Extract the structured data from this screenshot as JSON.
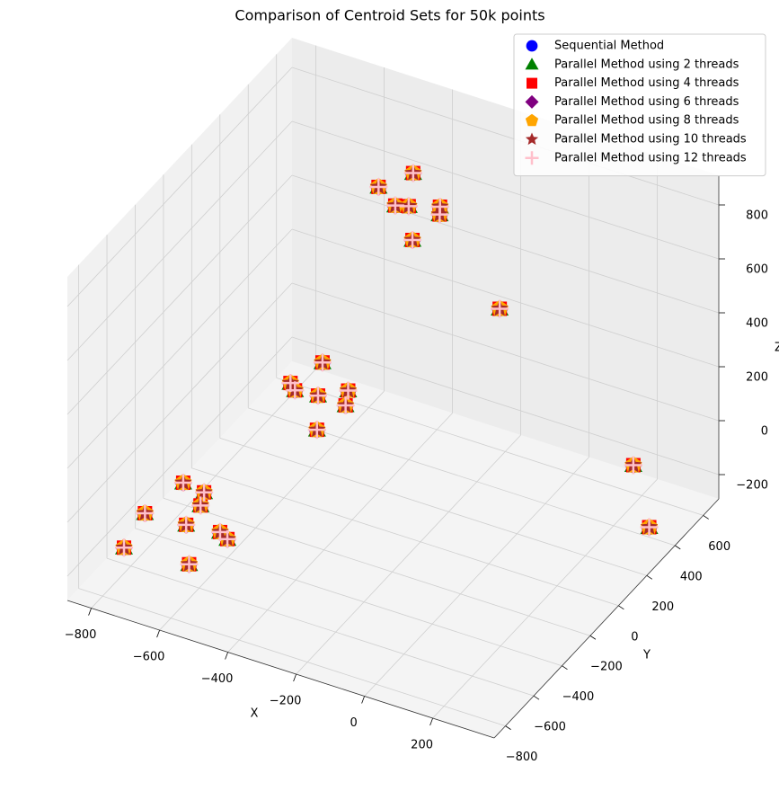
{
  "chart_data": {
    "type": "scatter3d",
    "title": "Comparison of Centroid Sets for 50k points",
    "xlabel": "X",
    "ylabel": "Y",
    "zlabel": "Z",
    "xlim": [
      -870,
      380
    ],
    "ylim": [
      -880,
      710
    ],
    "zlim": [
      -290,
      910
    ],
    "xticks": [
      {
        "value": -800,
        "label": "−800"
      },
      {
        "value": -600,
        "label": "−600"
      },
      {
        "value": -400,
        "label": "−400"
      },
      {
        "value": -200,
        "label": "−200"
      },
      0,
      200
    ],
    "yticks": [
      {
        "value": -800,
        "label": "−800"
      },
      {
        "value": -600,
        "label": "−600"
      },
      {
        "value": -400,
        "label": "−400"
      },
      {
        "value": -200,
        "label": "−200"
      },
      0,
      200,
      400,
      600
    ],
    "zticks": [
      {
        "value": -200,
        "label": "−200"
      },
      0,
      200,
      400,
      600,
      800
    ],
    "grid": true,
    "legend": "upper right",
    "series": [
      {
        "name": "Sequential Method",
        "color": "#0000ff",
        "marker": "circle",
        "x": [
          -700,
          -800,
          -600,
          -750,
          -650,
          -820,
          -580,
          -720,
          -660,
          -500,
          -560,
          -440,
          -520,
          -470,
          -420,
          -580,
          -400,
          -480,
          -330,
          -420,
          -360,
          -300,
          -460,
          -30,
          320,
          350
        ],
        "y": [
          -450,
          -500,
          -400,
          -350,
          -550,
          -600,
          -500,
          -300,
          -420,
          0,
          -50,
          50,
          80,
          -80,
          20,
          30,
          400,
          380,
          450,
          480,
          330,
          380,
          450,
          150,
          250,
          290
        ],
        "z": [
          -180,
          -150,
          -220,
          -100,
          -250,
          -230,
          -130,
          -200,
          -60,
          130,
          180,
          90,
          200,
          60,
          170,
          100,
          650,
          700,
          620,
          720,
          580,
          700,
          600,
          560,
          67,
          -173
        ]
      },
      {
        "name": "Parallel Method using 2 threads",
        "color": "#008000",
        "marker": "triangle",
        "x": [
          -700,
          -800,
          -600,
          -750,
          -650,
          -820,
          -580,
          -720,
          -660,
          -500,
          -560,
          -440,
          -520,
          -470,
          -420,
          -580,
          -400,
          -480,
          -330,
          -420,
          -360,
          -300,
          -460,
          -30,
          320,
          350
        ],
        "y": [
          -450,
          -500,
          -400,
          -350,
          -550,
          -600,
          -500,
          -300,
          -420,
          0,
          -50,
          50,
          80,
          -80,
          20,
          30,
          400,
          380,
          450,
          480,
          330,
          380,
          450,
          150,
          250,
          290
        ],
        "z": [
          -180,
          -150,
          -220,
          -100,
          -250,
          -230,
          -130,
          -200,
          -60,
          130,
          180,
          90,
          200,
          60,
          170,
          100,
          650,
          700,
          620,
          720,
          580,
          700,
          600,
          560,
          67,
          -173
        ]
      },
      {
        "name": "Parallel Method using 4 threads",
        "color": "#ff0000",
        "marker": "square",
        "x": [
          -700,
          -800,
          -600,
          -750,
          -650,
          -820,
          -580,
          -720,
          -660,
          -500,
          -560,
          -440,
          -520,
          -470,
          -420,
          -580,
          -400,
          -480,
          -330,
          -420,
          -360,
          -300,
          -460,
          -30,
          320,
          350
        ],
        "y": [
          -450,
          -500,
          -400,
          -350,
          -550,
          -600,
          -500,
          -300,
          -420,
          0,
          -50,
          50,
          80,
          -80,
          20,
          30,
          400,
          380,
          450,
          480,
          330,
          380,
          450,
          150,
          250,
          290
        ],
        "z": [
          -180,
          -150,
          -220,
          -100,
          -250,
          -230,
          -130,
          -200,
          -60,
          130,
          180,
          90,
          200,
          60,
          170,
          100,
          650,
          700,
          620,
          720,
          580,
          700,
          600,
          560,
          67,
          -173
        ]
      },
      {
        "name": "Parallel Method using 6 threads",
        "color": "#800080",
        "marker": "diamond",
        "x": [
          -700,
          -800,
          -600,
          -750,
          -650,
          -820,
          -580,
          -720,
          -660,
          -500,
          -560,
          -440,
          -520,
          -470,
          -420,
          -580,
          -400,
          -480,
          -330,
          -420,
          -360,
          -300,
          -460,
          -30,
          320,
          350
        ],
        "y": [
          -450,
          -500,
          -400,
          -350,
          -550,
          -600,
          -500,
          -300,
          -420,
          0,
          -50,
          50,
          80,
          -80,
          20,
          30,
          400,
          380,
          450,
          480,
          330,
          380,
          450,
          150,
          250,
          290
        ],
        "z": [
          -180,
          -150,
          -220,
          -100,
          -250,
          -230,
          -130,
          -200,
          -60,
          130,
          180,
          90,
          200,
          60,
          170,
          100,
          650,
          700,
          620,
          720,
          580,
          700,
          600,
          560,
          67,
          -173
        ]
      },
      {
        "name": "Parallel Method using 8 threads",
        "color": "#ffa500",
        "marker": "pentagon",
        "x": [
          -700,
          -800,
          -600,
          -750,
          -650,
          -820,
          -580,
          -720,
          -660,
          -500,
          -560,
          -440,
          -520,
          -470,
          -420,
          -580,
          -400,
          -480,
          -330,
          -420,
          -360,
          -300,
          -460,
          -30,
          320,
          350
        ],
        "y": [
          -450,
          -500,
          -400,
          -350,
          -550,
          -600,
          -500,
          -300,
          -420,
          0,
          -50,
          50,
          80,
          -80,
          20,
          30,
          400,
          380,
          450,
          480,
          330,
          380,
          450,
          150,
          250,
          290
        ],
        "z": [
          -180,
          -150,
          -220,
          -100,
          -250,
          -230,
          -130,
          -200,
          -60,
          130,
          180,
          90,
          200,
          60,
          170,
          100,
          650,
          700,
          620,
          720,
          580,
          700,
          600,
          560,
          67,
          -173
        ]
      },
      {
        "name": "Parallel Method using 10 threads",
        "color": "#a52a2a",
        "marker": "star",
        "x": [
          -700,
          -800,
          -600,
          -750,
          -650,
          -820,
          -580,
          -720,
          -660,
          -500,
          -560,
          -440,
          -520,
          -470,
          -420,
          -580,
          -400,
          -480,
          -330,
          -420,
          -360,
          -300,
          -460,
          -30,
          320,
          350
        ],
        "y": [
          -450,
          -500,
          -400,
          -350,
          -550,
          -600,
          -500,
          -300,
          -420,
          0,
          -50,
          50,
          80,
          -80,
          20,
          30,
          400,
          380,
          450,
          480,
          330,
          380,
          450,
          150,
          250,
          290
        ],
        "z": [
          -180,
          -150,
          -220,
          -100,
          -250,
          -230,
          -130,
          -200,
          -60,
          130,
          180,
          90,
          200,
          60,
          170,
          100,
          650,
          700,
          620,
          720,
          580,
          700,
          600,
          560,
          67,
          -173
        ]
      },
      {
        "name": "Parallel Method using 12 threads",
        "color": "#ffc0cb",
        "marker": "plus",
        "x": [
          -700,
          -800,
          -600,
          -750,
          -650,
          -820,
          -580,
          -720,
          -660,
          -500,
          -560,
          -440,
          -520,
          -470,
          -420,
          -580,
          -400,
          -480,
          -330,
          -420,
          -360,
          -300,
          -460,
          -30,
          320,
          350
        ],
        "y": [
          -450,
          -500,
          -400,
          -350,
          -550,
          -600,
          -500,
          -300,
          -420,
          0,
          -50,
          50,
          80,
          -80,
          20,
          30,
          400,
          380,
          450,
          480,
          330,
          380,
          450,
          150,
          250,
          290
        ],
        "z": [
          -180,
          -150,
          -220,
          -100,
          -250,
          -230,
          -130,
          -200,
          -60,
          130,
          180,
          90,
          200,
          60,
          170,
          100,
          650,
          700,
          620,
          720,
          580,
          700,
          600,
          560,
          67,
          -173
        ]
      }
    ]
  }
}
